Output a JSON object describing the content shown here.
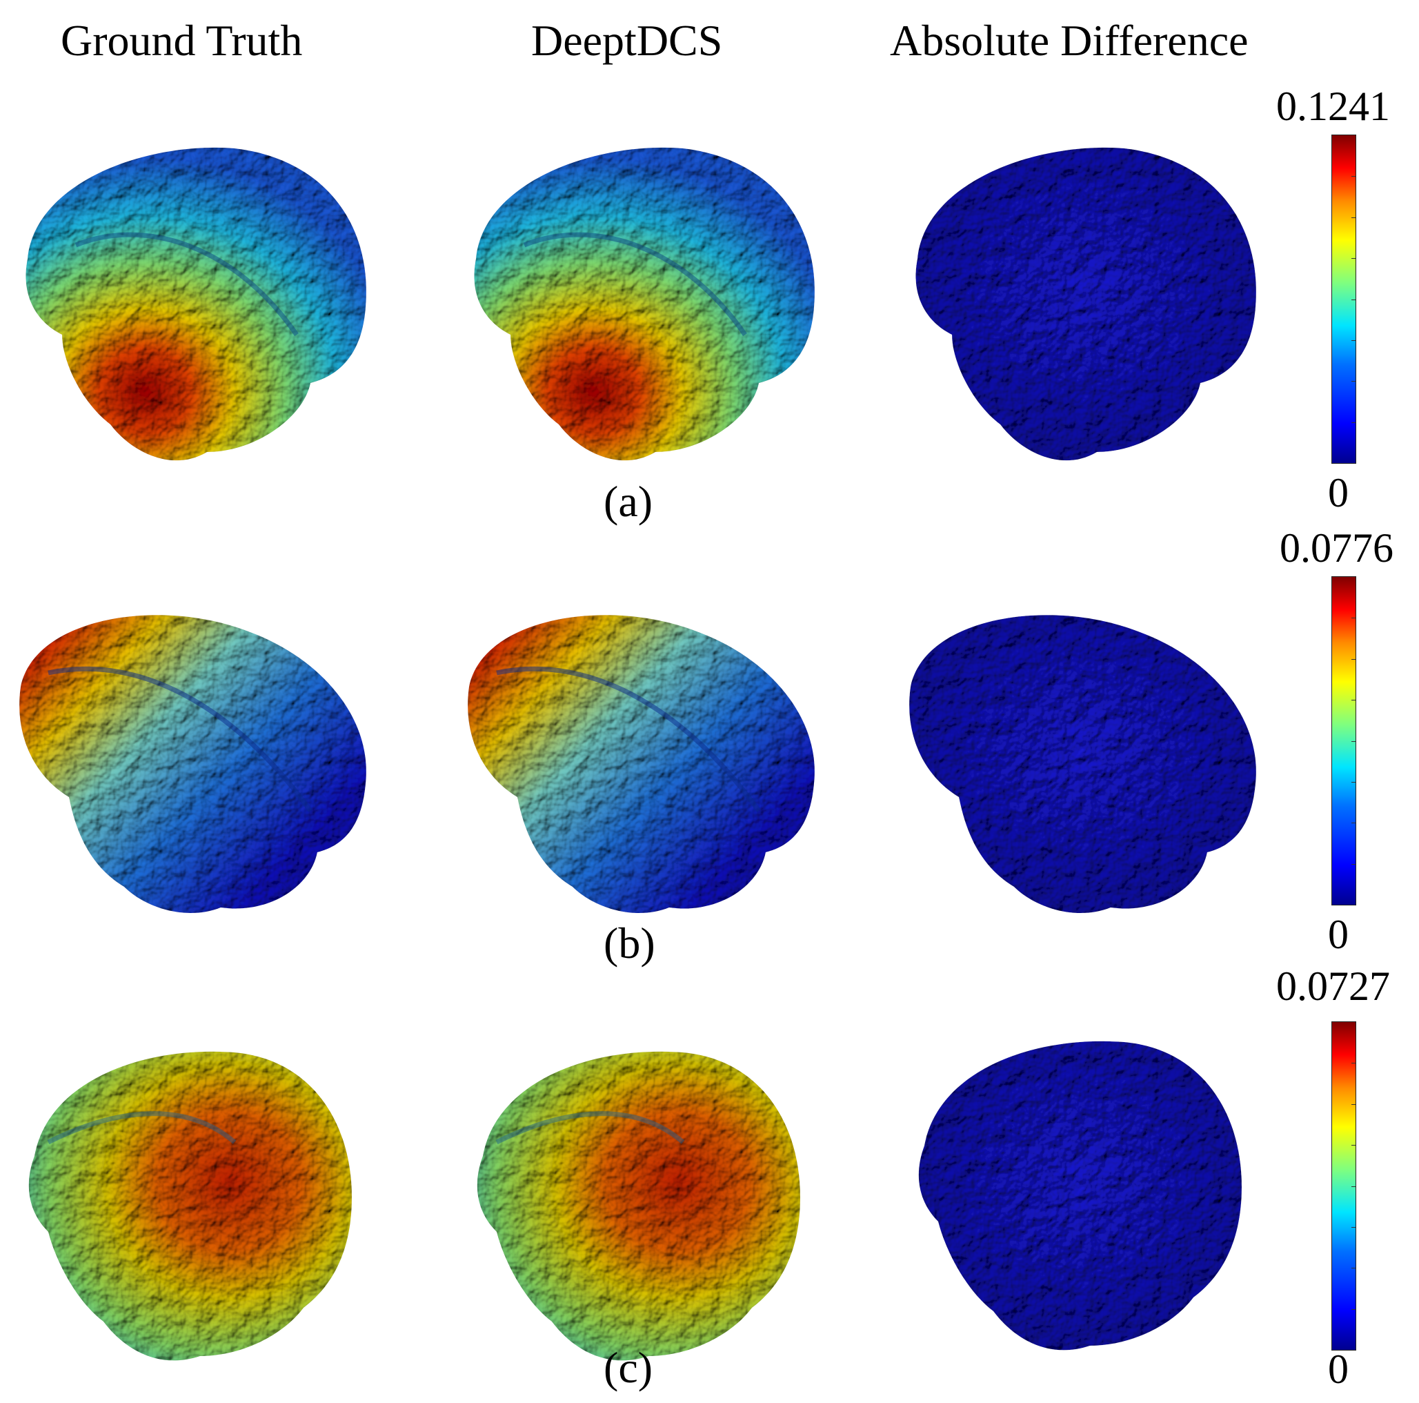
{
  "headers": {
    "ground_truth": "Ground Truth",
    "deeptdcs": "DeeptDCS",
    "absolute_difference": "Absolute Difference"
  },
  "rows": [
    {
      "label": "(a)",
      "colorbar_max": "0.1241",
      "colorbar_min": "0"
    },
    {
      "label": "(b)",
      "colorbar_max": "0.0776",
      "colorbar_min": "0"
    },
    {
      "label": "(c)",
      "colorbar_max": "0.0727",
      "colorbar_min": "0"
    }
  ],
  "colormap": [
    "#00008f",
    "#0000ff",
    "#00e5ff",
    "#ffff00",
    "#ff0000",
    "#800000"
  ]
}
